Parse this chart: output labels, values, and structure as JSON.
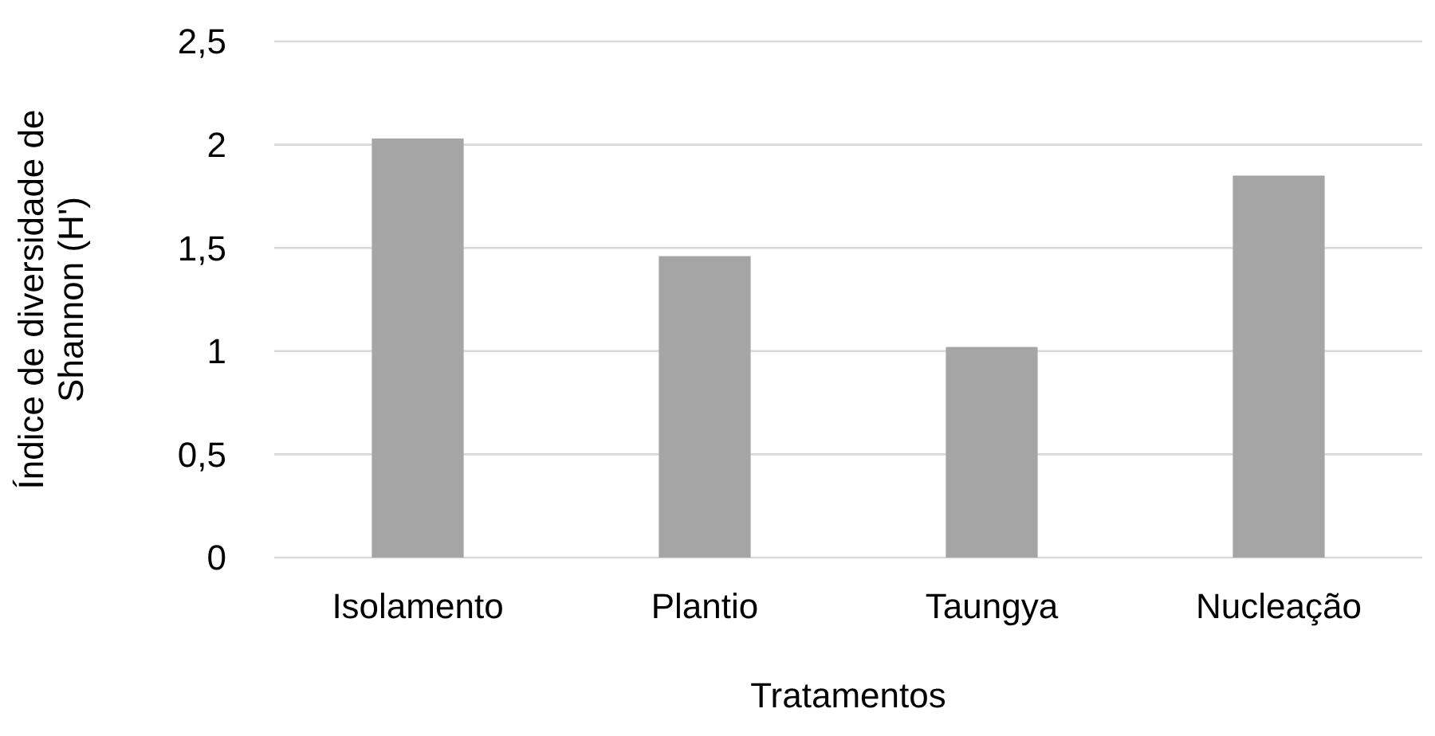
{
  "chart_data": {
    "type": "bar",
    "xlabel": "Tratamentos",
    "ylabel": "Índice de diversidade de Shannon (H')",
    "categories": [
      "Isolamento",
      "Plantio",
      "Taungya",
      "Nucleação"
    ],
    "values": [
      2.03,
      1.46,
      1.02,
      1.85
    ],
    "color": "#a5a5a5",
    "ylim": [
      0,
      2.5
    ],
    "yticks": [
      0,
      {
        "value": 0.5,
        "label": "0,5"
      },
      1,
      {
        "value": 1.5,
        "label": "1,5"
      },
      2,
      {
        "value": 2.5,
        "label": "2,5"
      }
    ],
    "grid": "y"
  }
}
